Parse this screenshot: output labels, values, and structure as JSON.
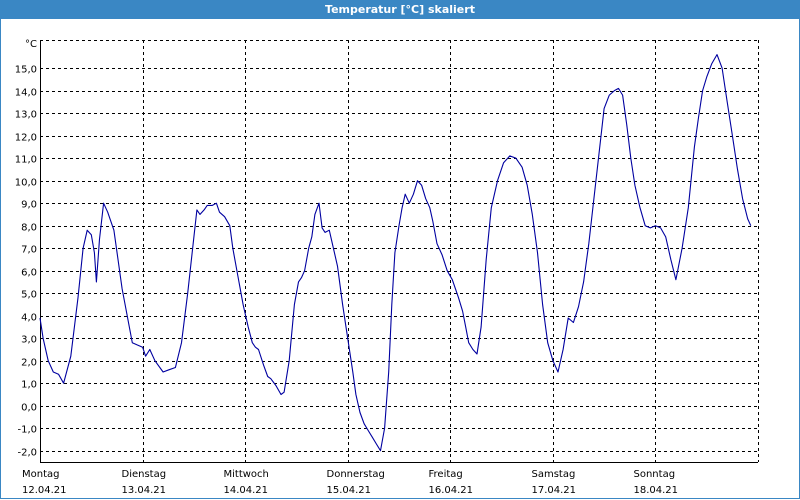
{
  "window": {
    "title": "Temperatur [°C] skaliert"
  },
  "colors": {
    "titlebar": "#3a87c4",
    "series": "#0000a0",
    "grid": "#000000"
  },
  "chart_data": {
    "type": "line",
    "title": "Temperatur [°C] skaliert",
    "ylabel": "°C",
    "ylim": [
      -2.5,
      16.25
    ],
    "yticks": [
      -2.0,
      -1.0,
      0.0,
      1.0,
      2.0,
      3.0,
      4.0,
      5.0,
      6.0,
      7.0,
      8.0,
      9.0,
      10.0,
      11.0,
      12.0,
      13.0,
      14.0,
      15.0
    ],
    "ytick_labels": [
      "-2,0",
      "-1,0",
      "0,0",
      "1,0",
      "2,0",
      "3,0",
      "4,0",
      "5,0",
      "6,0",
      "7,0",
      "8,0",
      "9,0",
      "10,0",
      "11,0",
      "12,0",
      "13,0",
      "14,0",
      "15,0"
    ],
    "xlim": [
      0,
      7
    ],
    "x_unit": "days since 12.04.21 00:00",
    "days": [
      {
        "weekday": "Montag",
        "date": "12.04.21"
      },
      {
        "weekday": "Dienstag",
        "date": "13.04.21"
      },
      {
        "weekday": "Mittwoch",
        "date": "14.04.21"
      },
      {
        "weekday": "Donnerstag",
        "date": "15.04.21"
      },
      {
        "weekday": "Freitag",
        "date": "16.04.21"
      },
      {
        "weekday": "Samstag",
        "date": "17.04.21"
      },
      {
        "weekday": "Sonntag",
        "date": "18.04.21"
      }
    ],
    "grid": true,
    "series": [
      {
        "values": [
          [
            0.0,
            3.9
          ],
          [
            0.03,
            3.0
          ],
          [
            0.08,
            2.0
          ],
          [
            0.13,
            1.5
          ],
          [
            0.18,
            1.4
          ],
          [
            0.23,
            1.0
          ],
          [
            0.3,
            2.2
          ],
          [
            0.37,
            4.8
          ],
          [
            0.42,
            7.0
          ],
          [
            0.46,
            7.8
          ],
          [
            0.5,
            7.6
          ],
          [
            0.53,
            6.8
          ],
          [
            0.55,
            5.5
          ],
          [
            0.58,
            7.4
          ],
          [
            0.62,
            9.0
          ],
          [
            0.66,
            8.6
          ],
          [
            0.72,
            7.8
          ],
          [
            0.76,
            6.5
          ],
          [
            0.8,
            5.2
          ],
          [
            0.85,
            4.0
          ],
          [
            0.9,
            2.8
          ],
          [
            0.95,
            2.7
          ],
          [
            1.0,
            2.6
          ],
          [
            1.03,
            2.2
          ],
          [
            1.07,
            2.5
          ],
          [
            1.12,
            2.0
          ],
          [
            1.2,
            1.5
          ],
          [
            1.26,
            1.6
          ],
          [
            1.32,
            1.7
          ],
          [
            1.38,
            2.8
          ],
          [
            1.44,
            5.0
          ],
          [
            1.5,
            7.5
          ],
          [
            1.53,
            8.7
          ],
          [
            1.56,
            8.5
          ],
          [
            1.6,
            8.7
          ],
          [
            1.63,
            8.9
          ],
          [
            1.68,
            8.9
          ],
          [
            1.72,
            9.0
          ],
          [
            1.75,
            8.6
          ],
          [
            1.8,
            8.4
          ],
          [
            1.85,
            8.0
          ],
          [
            1.88,
            7.0
          ],
          [
            1.92,
            6.0
          ],
          [
            1.98,
            4.5
          ],
          [
            2.03,
            3.5
          ],
          [
            2.07,
            2.8
          ],
          [
            2.1,
            2.6
          ],
          [
            2.13,
            2.5
          ],
          [
            2.18,
            1.8
          ],
          [
            2.22,
            1.3
          ],
          [
            2.25,
            1.2
          ],
          [
            2.3,
            0.9
          ],
          [
            2.35,
            0.5
          ],
          [
            2.38,
            0.6
          ],
          [
            2.43,
            2.0
          ],
          [
            2.48,
            4.5
          ],
          [
            2.52,
            5.5
          ],
          [
            2.55,
            5.7
          ],
          [
            2.58,
            6.0
          ],
          [
            2.62,
            7.0
          ],
          [
            2.65,
            7.5
          ],
          [
            2.68,
            8.5
          ],
          [
            2.72,
            9.0
          ],
          [
            2.75,
            7.9
          ],
          [
            2.78,
            7.7
          ],
          [
            2.82,
            7.8
          ],
          [
            2.86,
            7.0
          ],
          [
            2.9,
            6.2
          ],
          [
            2.95,
            4.5
          ],
          [
            3.0,
            3.0
          ],
          [
            3.05,
            1.5
          ],
          [
            3.08,
            0.5
          ],
          [
            3.12,
            -0.3
          ],
          [
            3.16,
            -0.8
          ],
          [
            3.2,
            -1.1
          ],
          [
            3.24,
            -1.4
          ],
          [
            3.28,
            -1.7
          ],
          [
            3.32,
            -2.0
          ],
          [
            3.36,
            -1.0
          ],
          [
            3.4,
            1.5
          ],
          [
            3.43,
            4.5
          ],
          [
            3.46,
            6.8
          ],
          [
            3.5,
            8.0
          ],
          [
            3.53,
            8.8
          ],
          [
            3.56,
            9.4
          ],
          [
            3.6,
            9.0
          ],
          [
            3.64,
            9.4
          ],
          [
            3.68,
            10.0
          ],
          [
            3.72,
            9.8
          ],
          [
            3.76,
            9.2
          ],
          [
            3.8,
            8.8
          ],
          [
            3.83,
            8.2
          ],
          [
            3.87,
            7.2
          ],
          [
            3.92,
            6.7
          ],
          [
            3.97,
            6.0
          ],
          [
            4.02,
            5.6
          ],
          [
            4.08,
            4.8
          ],
          [
            4.12,
            4.2
          ],
          [
            4.15,
            3.5
          ],
          [
            4.18,
            2.8
          ],
          [
            4.22,
            2.5
          ],
          [
            4.26,
            2.3
          ],
          [
            4.3,
            3.5
          ],
          [
            4.35,
            6.5
          ],
          [
            4.4,
            8.8
          ],
          [
            4.46,
            10.0
          ],
          [
            4.52,
            10.8
          ],
          [
            4.58,
            11.1
          ],
          [
            4.64,
            11.0
          ],
          [
            4.7,
            10.6
          ],
          [
            4.75,
            9.8
          ],
          [
            4.8,
            8.5
          ],
          [
            4.85,
            6.8
          ],
          [
            4.9,
            4.5
          ],
          [
            4.95,
            2.8
          ],
          [
            5.0,
            2.0
          ],
          [
            5.05,
            1.5
          ],
          [
            5.1,
            2.5
          ],
          [
            5.15,
            3.9
          ],
          [
            5.2,
            3.7
          ],
          [
            5.25,
            4.4
          ],
          [
            5.3,
            5.5
          ],
          [
            5.35,
            7.2
          ],
          [
            5.4,
            9.2
          ],
          [
            5.45,
            11.2
          ],
          [
            5.5,
            13.2
          ],
          [
            5.55,
            13.8
          ],
          [
            5.6,
            14.0
          ],
          [
            5.64,
            14.1
          ],
          [
            5.68,
            13.8
          ],
          [
            5.72,
            12.5
          ],
          [
            5.76,
            11.0
          ],
          [
            5.8,
            9.8
          ],
          [
            5.85,
            8.8
          ],
          [
            5.9,
            8.0
          ],
          [
            5.95,
            7.9
          ],
          [
            6.0,
            8.0
          ],
          [
            6.05,
            7.9
          ],
          [
            6.1,
            7.5
          ],
          [
            6.15,
            6.5
          ],
          [
            6.2,
            5.6
          ],
          [
            6.26,
            7.0
          ],
          [
            6.32,
            8.8
          ],
          [
            6.38,
            11.5
          ],
          [
            6.42,
            12.8
          ],
          [
            6.46,
            14.0
          ],
          [
            6.5,
            14.6
          ],
          [
            6.55,
            15.2
          ],
          [
            6.6,
            15.6
          ],
          [
            6.65,
            15.0
          ],
          [
            6.7,
            13.5
          ],
          [
            6.75,
            12.0
          ],
          [
            6.8,
            10.5
          ],
          [
            6.85,
            9.2
          ],
          [
            6.9,
            8.3
          ],
          [
            6.93,
            8.0
          ]
        ]
      }
    ]
  }
}
